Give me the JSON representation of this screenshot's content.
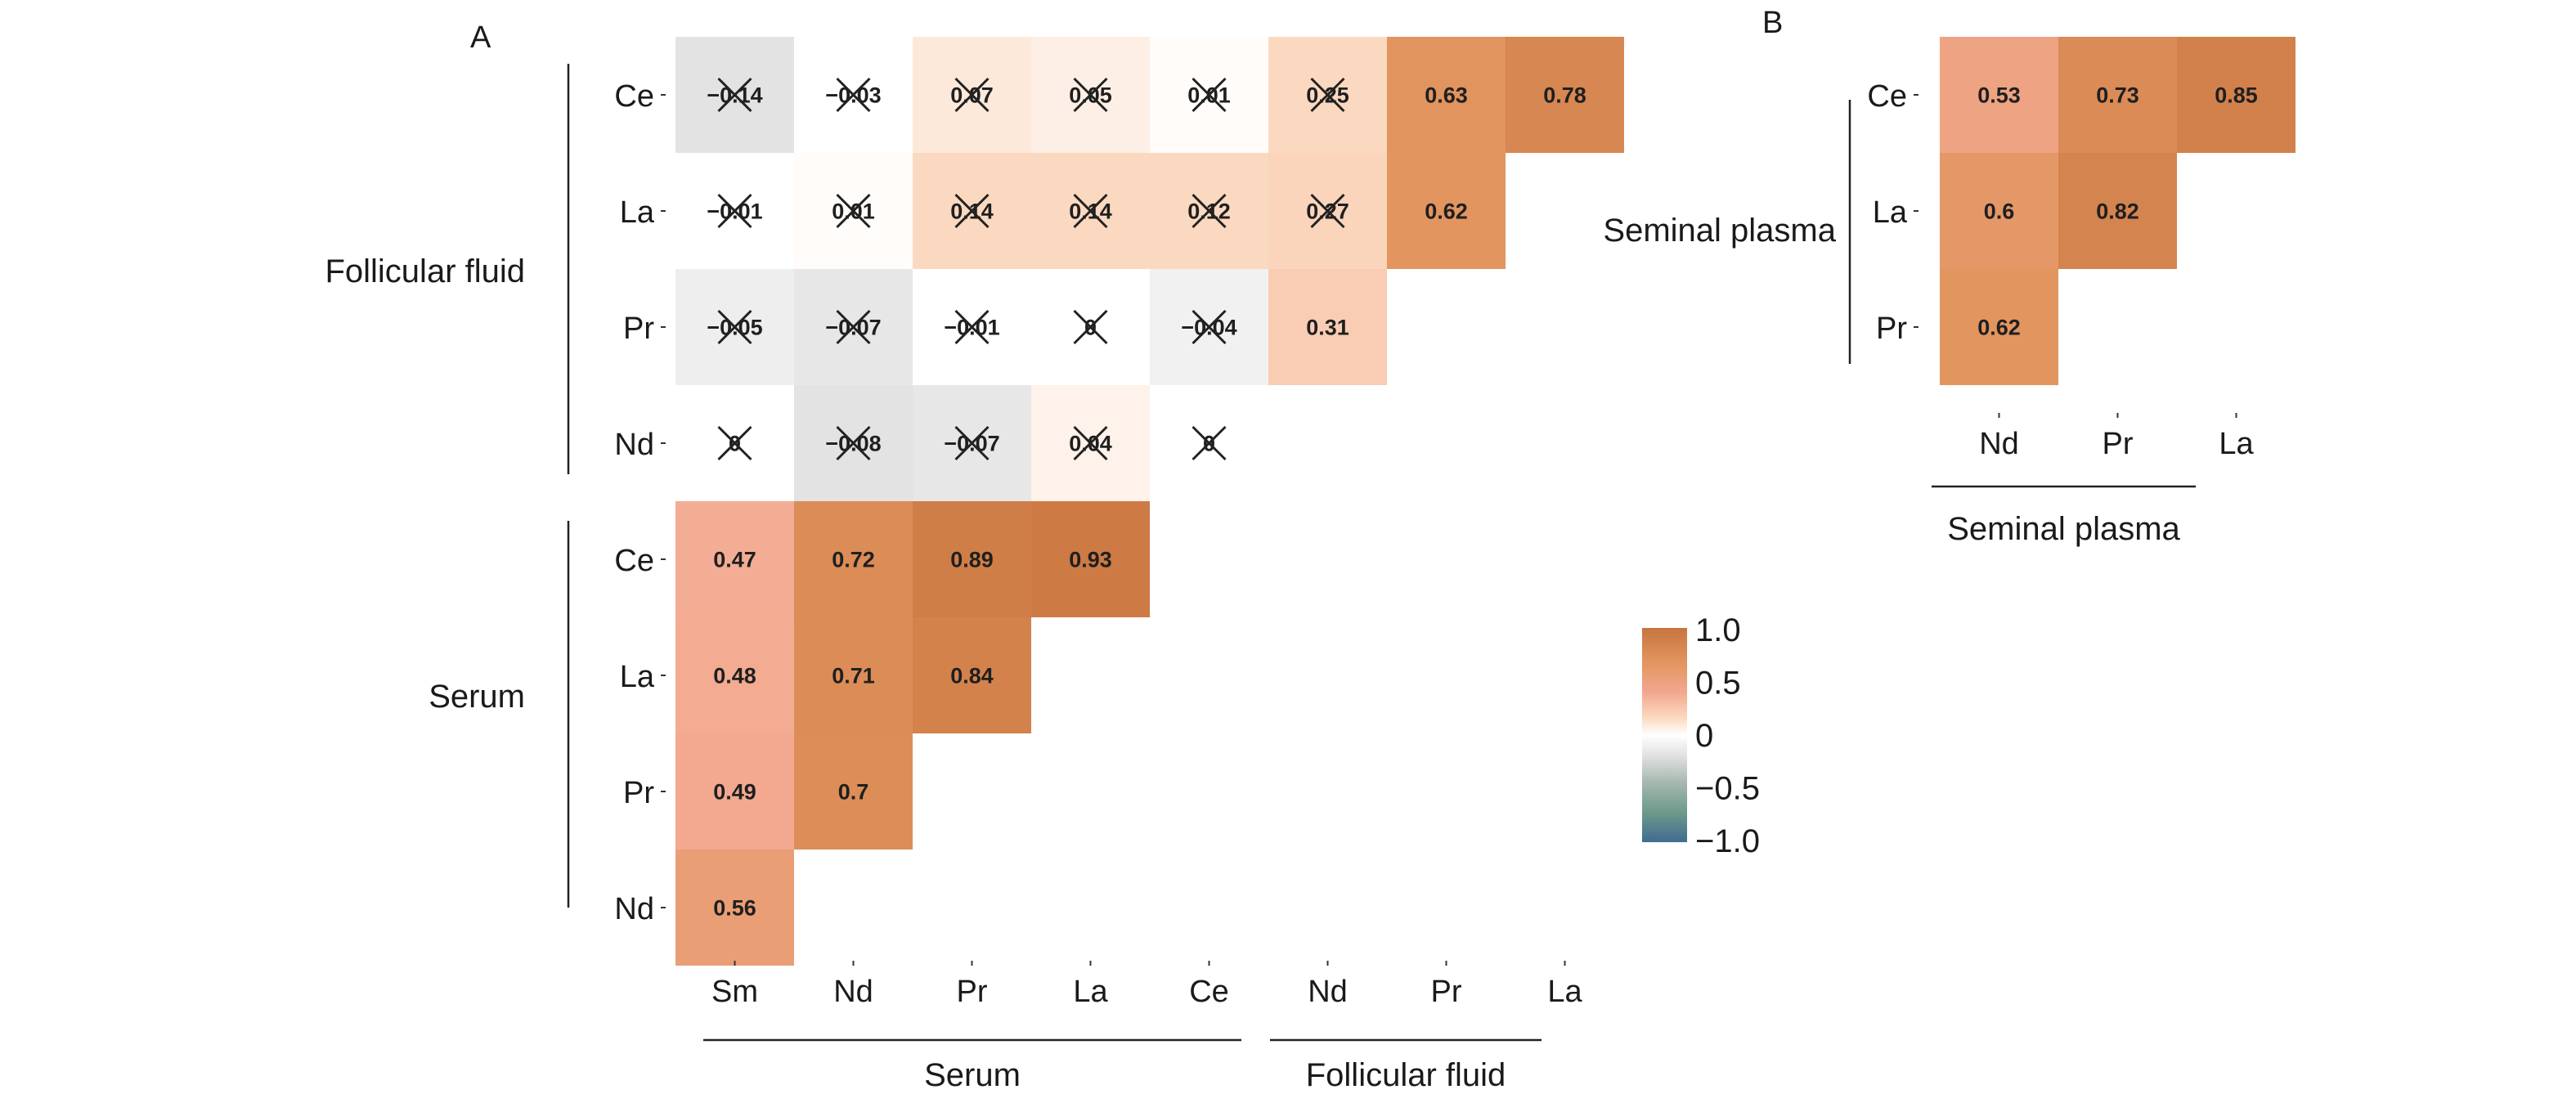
{
  "chart_data": [
    {
      "type": "heatmap",
      "panel_label": "A",
      "x_categories": [
        "Sm",
        "Nd",
        "Pr",
        "La",
        "Ce",
        "Nd",
        "Pr",
        "La"
      ],
      "y_categories": [
        "Ce",
        "La",
        "Pr",
        "Nd",
        "Ce",
        "La",
        "Pr",
        "Nd"
      ],
      "x_groups": [
        {
          "name": "Serum",
          "columns": [
            0,
            1,
            2,
            3,
            4
          ]
        },
        {
          "name": "Follicular fluid",
          "columns": [
            5,
            6,
            7
          ]
        }
      ],
      "y_groups": [
        {
          "name": "Follicular fluid",
          "rows": [
            0,
            1,
            2,
            3
          ]
        },
        {
          "name": "Serum",
          "rows": [
            4,
            5,
            6,
            7
          ]
        }
      ],
      "values": [
        [
          -0.14,
          -0.03,
          0.07,
          0.05,
          0.01,
          0.25,
          0.63,
          0.78
        ],
        [
          -0.01,
          0.01,
          0.14,
          0.14,
          0.12,
          0.27,
          0.62,
          null
        ],
        [
          -0.05,
          -0.07,
          -0.01,
          0,
          -0.04,
          0.31,
          null,
          null
        ],
        [
          0,
          -0.08,
          -0.07,
          0.04,
          0,
          null,
          null,
          null
        ],
        [
          0.47,
          0.72,
          0.89,
          0.93,
          null,
          null,
          null,
          null
        ],
        [
          0.48,
          0.71,
          0.84,
          null,
          null,
          null,
          null,
          null
        ],
        [
          0.49,
          0.7,
          null,
          null,
          null,
          null,
          null,
          null
        ],
        [
          0.56,
          null,
          null,
          null,
          null,
          null,
          null,
          null
        ]
      ],
      "labels": [
        [
          "−0.14",
          "−0.03",
          "0.07",
          "0.05",
          "0.01",
          "0.25",
          "0.63",
          "0.78"
        ],
        [
          "−0.01",
          "0.01",
          "0.14",
          "0.14",
          "0.12",
          "0.27",
          "0.62",
          ""
        ],
        [
          "−0.05",
          "−0.07",
          "−0.01",
          "0",
          "−0.04",
          "0.31",
          "",
          ""
        ],
        [
          "0",
          "−0.08",
          "−0.07",
          "0.04",
          "0",
          "",
          "",
          ""
        ],
        [
          "0.47",
          "0.72",
          "0.89",
          "0.93",
          "",
          "",
          "",
          ""
        ],
        [
          "0.48",
          "0.71",
          "0.84",
          "",
          "",
          "",
          "",
          ""
        ],
        [
          "0.49",
          "0.7",
          "",
          "",
          "",
          "",
          "",
          ""
        ],
        [
          "0.56",
          "",
          "",
          "",
          "",
          "",
          "",
          ""
        ]
      ],
      "crossed_out": [
        [
          true,
          true,
          true,
          true,
          true,
          true,
          false,
          false
        ],
        [
          true,
          true,
          true,
          true,
          true,
          true,
          false,
          false
        ],
        [
          true,
          true,
          true,
          true,
          true,
          false,
          false,
          false
        ],
        [
          true,
          true,
          true,
          true,
          true,
          false,
          false,
          false
        ],
        [
          false,
          false,
          false,
          false,
          false,
          false,
          false,
          false
        ],
        [
          false,
          false,
          false,
          false,
          false,
          false,
          false,
          false
        ],
        [
          false,
          false,
          false,
          false,
          false,
          false,
          false,
          false
        ],
        [
          false,
          false,
          false,
          false,
          false,
          false,
          false,
          false
        ]
      ]
    },
    {
      "type": "heatmap",
      "panel_label": "B",
      "x_categories": [
        "Nd",
        "Pr",
        "La"
      ],
      "y_categories": [
        "Ce",
        "La",
        "Pr"
      ],
      "x_groups": [
        {
          "name": "Seminal plasma",
          "columns": [
            0,
            1,
            2
          ]
        }
      ],
      "y_groups": [
        {
          "name": "Seminal plasma",
          "rows": [
            0,
            1,
            2
          ]
        }
      ],
      "values": [
        [
          0.53,
          0.73,
          0.85
        ],
        [
          0.6,
          0.82,
          null
        ],
        [
          0.62,
          null,
          null
        ]
      ],
      "labels": [
        [
          "0.53",
          "0.73",
          "0.85"
        ],
        [
          "0.6",
          "0.82",
          ""
        ],
        [
          "0.62",
          "",
          ""
        ]
      ],
      "crossed_out": [
        [
          false,
          false,
          false
        ],
        [
          false,
          false,
          false
        ],
        [
          false,
          false,
          false
        ]
      ]
    }
  ],
  "colorbar": {
    "range": [
      -1,
      1
    ],
    "tick_labels": [
      "1.0",
      "0.5",
      "0",
      "−0.5",
      "−1.0"
    ],
    "colors": {
      "neg_strong": "#3f6b8f",
      "neg_mid": "#6e9a8c",
      "neg_light": "#a7b8b0",
      "zero": "#ffffff",
      "pos_light": "#fbd9c0",
      "pos_mid": "#f2a78e",
      "pos_orange": "#e2955f",
      "pos_strong": "#c8743f"
    }
  }
}
